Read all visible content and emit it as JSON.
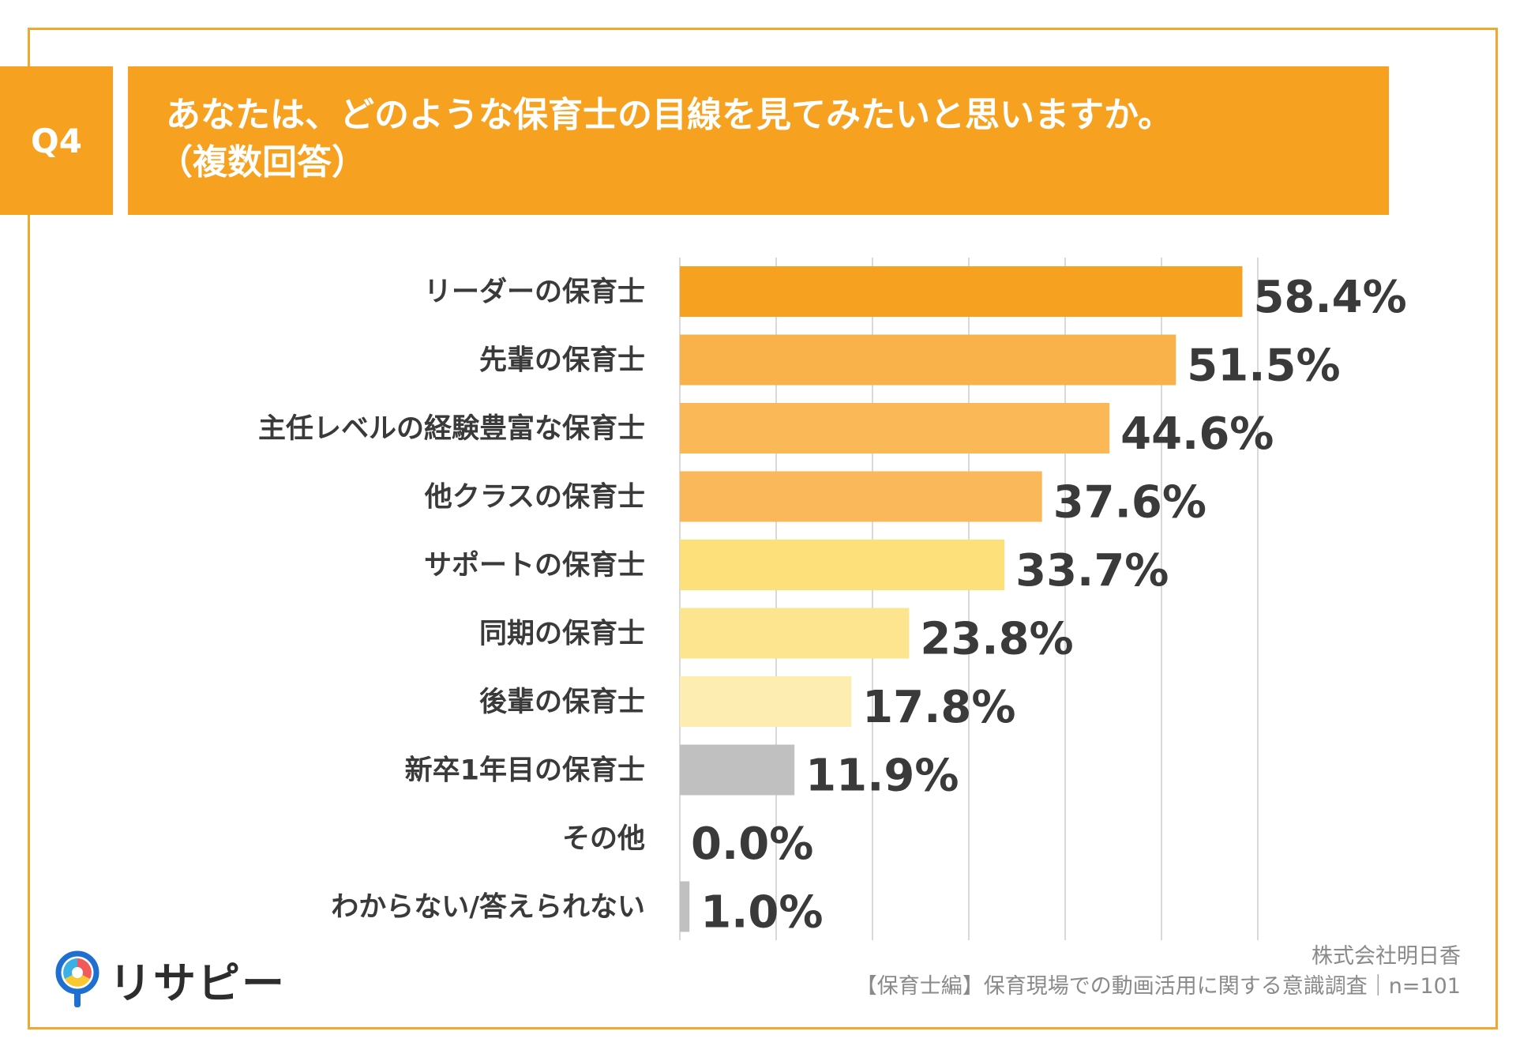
{
  "question": {
    "number": "Q4",
    "title_line1": "あなたは、どのような保育士の目線を見てみたいと思いますか。",
    "title_line2": "（複数回答）"
  },
  "chart_data": {
    "type": "bar",
    "orientation": "horizontal",
    "categories": [
      "リーダーの保育士",
      "先輩の保育士",
      "主任レベルの経験豊富な保育士",
      "他クラスの保育士",
      "サポートの保育士",
      "同期の保育士",
      "後輩の保育士",
      "新卒1年目の保育士",
      "その他",
      "わからない/答えられない"
    ],
    "values": [
      58.4,
      51.5,
      44.6,
      37.6,
      33.7,
      23.8,
      17.8,
      11.9,
      0.0,
      1.0
    ],
    "value_labels": [
      "58.4%",
      "51.5%",
      "44.6%",
      "37.6%",
      "33.7%",
      "23.8%",
      "17.8%",
      "11.9%",
      "0.0%",
      "1.0%"
    ],
    "colors": [
      "#f7a120",
      "#f9b14a",
      "#fab857",
      "#fab85a",
      "#fde07a",
      "#fde48e",
      "#feedb0",
      "#c0c0c0",
      "#c0c0c0",
      "#c0c0c0"
    ],
    "xlim": [
      0,
      60
    ],
    "grid": true
  },
  "footer": {
    "company": "株式会社明日香",
    "survey": "【保育士編】保育現場での動画活用に関する意識調査｜n=101"
  },
  "logo": {
    "text": "リサピー",
    "mark": "location-pin-icon"
  }
}
